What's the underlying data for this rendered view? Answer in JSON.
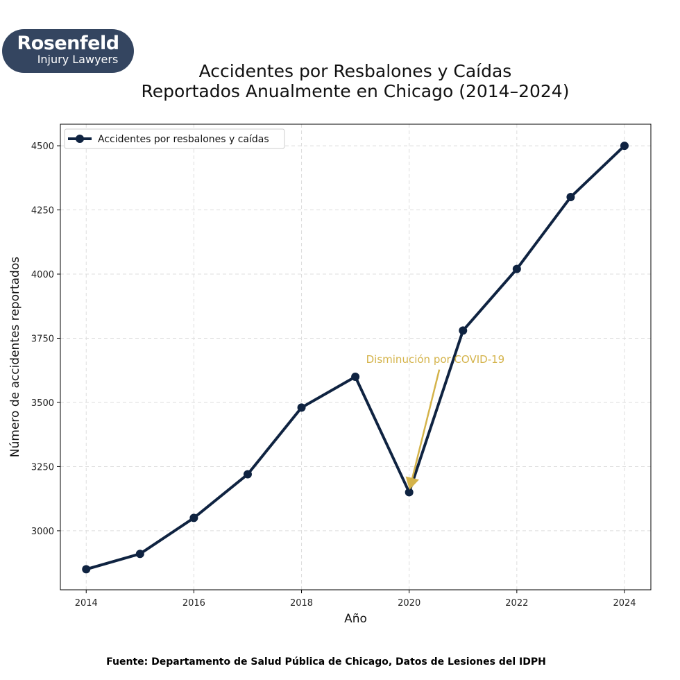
{
  "logo": {
    "line1": "Rosenfeld",
    "line2": "Injury Lawyers"
  },
  "source": "Fuente: Departamento de Salud Pública de Chicago, Datos de Lesiones del IDPH",
  "chart_data": {
    "type": "line",
    "title": [
      "Accidentes por Resbalones y Caídas",
      "Reportados Anualmente en Chicago (2014–2024)"
    ],
    "xlabel": "Año",
    "ylabel": "Número de accidentes reportados",
    "x": [
      2014,
      2015,
      2016,
      2017,
      2018,
      2019,
      2020,
      2021,
      2022,
      2023,
      2024
    ],
    "series": [
      {
        "name": "Accidentes por resbalones y caídas",
        "color": "#0f2341",
        "values": [
          2850,
          2910,
          3050,
          3220,
          3480,
          3600,
          3150,
          3780,
          4020,
          4300,
          4500
        ]
      }
    ],
    "xlim": [
      2013.52,
      2024.49
    ],
    "ylim": [
      2770,
      4584
    ],
    "xticks": [
      2014,
      2016,
      2018,
      2020,
      2022,
      2024
    ],
    "yticks": [
      3000,
      3250,
      3500,
      3750,
      4000,
      4250,
      4500
    ],
    "grid": true,
    "legend": "top-left",
    "annotation": {
      "text": "Disminución por COVID-19",
      "color": "#d4b34a",
      "text_at": [
        2019.2,
        3668
      ],
      "arrow_from": [
        2020.56,
        3628
      ],
      "arrow_to": [
        2020,
        3150
      ]
    }
  }
}
